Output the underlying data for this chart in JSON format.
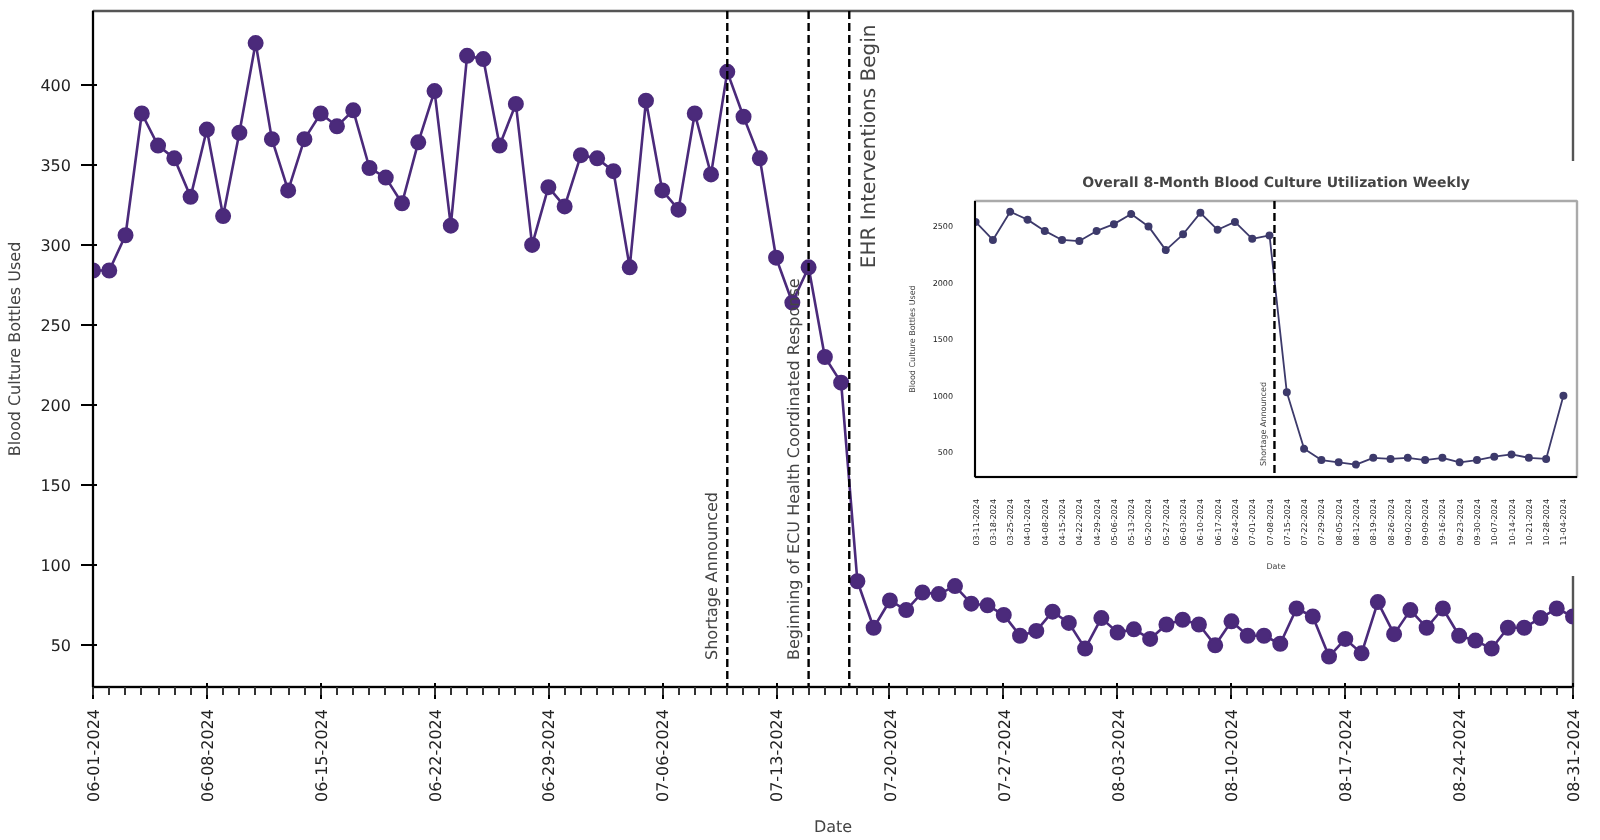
{
  "chart_data": [
    {
      "type": "line",
      "xlabel": "Date",
      "ylabel": "Blood Culture Bottles Used",
      "color": "#4b2a7b",
      "marker": "circle",
      "line_style": "solid",
      "grid": false,
      "x": [
        "2024-06-01",
        "2024-06-02",
        "2024-06-03",
        "2024-06-04",
        "2024-06-05",
        "2024-06-06",
        "2024-06-07",
        "2024-06-08",
        "2024-06-09",
        "2024-06-10",
        "2024-06-11",
        "2024-06-12",
        "2024-06-13",
        "2024-06-14",
        "2024-06-15",
        "2024-06-16",
        "2024-06-17",
        "2024-06-18",
        "2024-06-19",
        "2024-06-20",
        "2024-06-21",
        "2024-06-22",
        "2024-06-23",
        "2024-06-24",
        "2024-06-25",
        "2024-06-26",
        "2024-06-27",
        "2024-06-28",
        "2024-06-29",
        "2024-06-30",
        "2024-07-01",
        "2024-07-02",
        "2024-07-03",
        "2024-07-04",
        "2024-07-05",
        "2024-07-06",
        "2024-07-07",
        "2024-07-08",
        "2024-07-09",
        "2024-07-10",
        "2024-07-11",
        "2024-07-12",
        "2024-07-13",
        "2024-07-14",
        "2024-07-15",
        "2024-07-16",
        "2024-07-17",
        "2024-07-18",
        "2024-07-19",
        "2024-07-20",
        "2024-07-21",
        "2024-07-22",
        "2024-07-23",
        "2024-07-24",
        "2024-07-25",
        "2024-07-26",
        "2024-07-27",
        "2024-07-28",
        "2024-07-29",
        "2024-07-30",
        "2024-07-31",
        "2024-08-01",
        "2024-08-02",
        "2024-08-03",
        "2024-08-04",
        "2024-08-05",
        "2024-08-06",
        "2024-08-07",
        "2024-08-08",
        "2024-08-09",
        "2024-08-10",
        "2024-08-11",
        "2024-08-12",
        "2024-08-13",
        "2024-08-14",
        "2024-08-15",
        "2024-08-16",
        "2024-08-17",
        "2024-08-18",
        "2024-08-19",
        "2024-08-20",
        "2024-08-21",
        "2024-08-22",
        "2024-08-23",
        "2024-08-24",
        "2024-08-25",
        "2024-08-26",
        "2024-08-27",
        "2024-08-28",
        "2024-08-29",
        "2024-08-30",
        "2024-08-31"
      ],
      "values": [
        284,
        284,
        306,
        382,
        362,
        354,
        330,
        372,
        318,
        370,
        426,
        366,
        334,
        366,
        382,
        374,
        384,
        348,
        342,
        326,
        364,
        396,
        312,
        418,
        416,
        362,
        388,
        300,
        336,
        324,
        356,
        354,
        346,
        286,
        390,
        334,
        322,
        382,
        344,
        408,
        380,
        354,
        292,
        264,
        286,
        230,
        214,
        90,
        61,
        78,
        72,
        83,
        82,
        87,
        76,
        75,
        69,
        56,
        59,
        71,
        64,
        48,
        67,
        58,
        60,
        54,
        63,
        66,
        63,
        50,
        65,
        56,
        56,
        51,
        73,
        68,
        43,
        54,
        45,
        77,
        57,
        72,
        61,
        73,
        56,
        53,
        48,
        61,
        61,
        67,
        73,
        68
      ],
      "xlim": [
        "2024-06-01",
        "2024-08-31"
      ],
      "ylim": [
        24,
        446
      ],
      "xticks": [
        {
          "value": "2024-06-01",
          "label": "06-01-2024"
        },
        {
          "value": "2024-06-08",
          "label": "06-08-2024"
        },
        {
          "value": "2024-06-15",
          "label": "06-15-2024"
        },
        {
          "value": "2024-06-22",
          "label": "06-22-2024"
        },
        {
          "value": "2024-06-29",
          "label": "06-29-2024"
        },
        {
          "value": "2024-07-06",
          "label": "07-06-2024"
        },
        {
          "value": "2024-07-13",
          "label": "07-13-2024"
        },
        {
          "value": "2024-07-20",
          "label": "07-20-2024"
        },
        {
          "value": "2024-07-27",
          "label": "07-27-2024"
        },
        {
          "value": "2024-08-03",
          "label": "08-03-2024"
        },
        {
          "value": "2024-08-10",
          "label": "08-10-2024"
        },
        {
          "value": "2024-08-17",
          "label": "08-17-2024"
        },
        {
          "value": "2024-08-24",
          "label": "08-24-2024"
        },
        {
          "value": "2024-08-31",
          "label": "08-31-2024"
        }
      ],
      "yticks": [
        50,
        100,
        150,
        200,
        250,
        300,
        350,
        400
      ],
      "ref_lines": [
        {
          "axis": "x",
          "value": "2024-07-10",
          "label": "Shortage Announced",
          "color": "#000000",
          "line_style": "dashed"
        },
        {
          "axis": "x",
          "value": "2024-07-15",
          "label": "Beginning of ECU Health Coordinated Response",
          "color": "#000000",
          "line_style": "dashed"
        },
        {
          "axis": "x",
          "value": "2024-07-17T12:00",
          "label": "EHR Interventions Begin",
          "color": "#000000",
          "line_style": "dashed"
        }
      ]
    },
    {
      "type": "line",
      "title": "Overall 8-Month Blood Culture Utilization Weekly",
      "xlabel": "Date",
      "ylabel": "Blood Culture Bottles Used",
      "color": "#3d3a6b",
      "marker": "circle",
      "line_style": "solid",
      "grid": false,
      "x": [
        "2024-03-11",
        "2024-03-18",
        "2024-03-25",
        "2024-04-01",
        "2024-04-08",
        "2024-04-15",
        "2024-04-22",
        "2024-04-29",
        "2024-05-06",
        "2024-05-13",
        "2024-05-20",
        "2024-05-27",
        "2024-06-03",
        "2024-06-10",
        "2024-06-17",
        "2024-06-24",
        "2024-07-01",
        "2024-07-08",
        "2024-07-15",
        "2024-07-22",
        "2024-07-29",
        "2024-08-05",
        "2024-08-12",
        "2024-08-19",
        "2024-08-26",
        "2024-09-02",
        "2024-09-09",
        "2024-09-16",
        "2024-09-23",
        "2024-09-30",
        "2024-10-07",
        "2024-10-14",
        "2024-10-21",
        "2024-10-28",
        "2024-11-04"
      ],
      "values": [
        2540,
        2380,
        2630,
        2560,
        2460,
        2380,
        2370,
        2460,
        2520,
        2610,
        2500,
        2290,
        2430,
        2620,
        2470,
        2540,
        2390,
        2420,
        1030,
        530,
        430,
        410,
        390,
        450,
        440,
        450,
        430,
        450,
        410,
        430,
        460,
        480,
        450,
        440,
        1000
      ],
      "xlim": [
        "2024-03-10T18:00",
        "2024-11-09T12:00"
      ],
      "ylim": [
        280,
        2725
      ],
      "xticks": [
        {
          "value": "2024-03-11",
          "label": "03-11-2024"
        },
        {
          "value": "2024-03-18",
          "label": "03-18-2024"
        },
        {
          "value": "2024-03-25",
          "label": "03-25-2024"
        },
        {
          "value": "2024-04-01",
          "label": "04-01-2024"
        },
        {
          "value": "2024-04-08",
          "label": "04-08-2024"
        },
        {
          "value": "2024-04-15",
          "label": "04-15-2024"
        },
        {
          "value": "2024-04-22",
          "label": "04-22-2024"
        },
        {
          "value": "2024-04-29",
          "label": "04-29-2024"
        },
        {
          "value": "2024-05-06",
          "label": "05-06-2024"
        },
        {
          "value": "2024-05-13",
          "label": "05-13-2024"
        },
        {
          "value": "2024-05-20",
          "label": "05-20-2024"
        },
        {
          "value": "2024-05-27",
          "label": "05-27-2024"
        },
        {
          "value": "2024-06-03",
          "label": "06-03-2024"
        },
        {
          "value": "2024-06-10",
          "label": "06-10-2024"
        },
        {
          "value": "2024-06-17",
          "label": "06-17-2024"
        },
        {
          "value": "2024-06-24",
          "label": "06-24-2024"
        },
        {
          "value": "2024-07-01",
          "label": "07-01-2024"
        },
        {
          "value": "2024-07-08",
          "label": "07-08-2024"
        },
        {
          "value": "2024-07-15",
          "label": "07-15-2024"
        },
        {
          "value": "2024-07-22",
          "label": "07-22-2024"
        },
        {
          "value": "2024-07-29",
          "label": "07-29-2024"
        },
        {
          "value": "2024-08-05",
          "label": "08-05-2024"
        },
        {
          "value": "2024-08-12",
          "label": "08-12-2024"
        },
        {
          "value": "2024-08-19",
          "label": "08-19-2024"
        },
        {
          "value": "2024-08-26",
          "label": "08-26-2024"
        },
        {
          "value": "2024-09-02",
          "label": "09-02-2024"
        },
        {
          "value": "2024-09-09",
          "label": "09-09-2024"
        },
        {
          "value": "2024-09-16",
          "label": "09-16-2024"
        },
        {
          "value": "2024-09-23",
          "label": "09-23-2024"
        },
        {
          "value": "2024-09-30",
          "label": "09-30-2024"
        },
        {
          "value": "2024-10-07",
          "label": "10-07-2024"
        },
        {
          "value": "2024-10-14",
          "label": "10-14-2024"
        },
        {
          "value": "2024-10-21",
          "label": "10-21-2024"
        },
        {
          "value": "2024-10-28",
          "label": "10-28-2024"
        },
        {
          "value": "2024-11-04",
          "label": "11-04-2024"
        }
      ],
      "yticks": [
        500,
        1000,
        1500,
        2000,
        2500
      ],
      "ref_lines": [
        {
          "axis": "x",
          "value": "2024-07-10",
          "label": "Shortage Announced",
          "color": "#000000",
          "line_style": "dashed"
        }
      ]
    }
  ]
}
